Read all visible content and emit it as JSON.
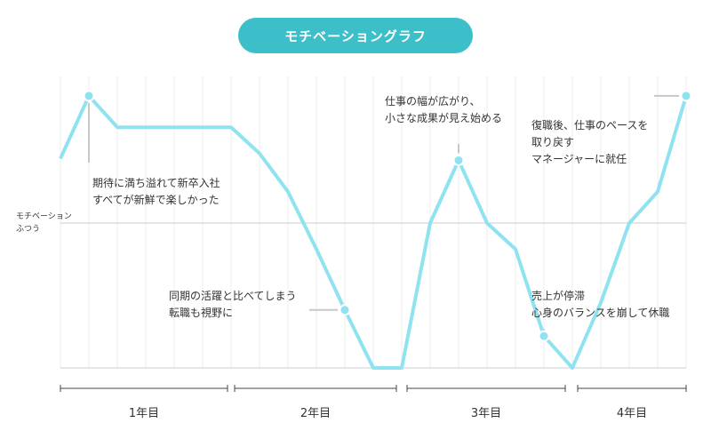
{
  "title": "モチベーショングラフ",
  "chart_data": {
    "type": "line",
    "title": "モチベーショングラフ",
    "ylabel": [
      "モチベーション",
      "ふつう"
    ],
    "ylim": [
      -1,
      1
    ],
    "x": [
      0,
      1,
      2,
      3,
      4,
      5,
      6,
      7,
      8,
      9,
      10,
      11,
      12,
      13,
      14,
      15,
      16,
      17,
      18,
      19,
      20,
      21,
      22
    ],
    "values": [
      0.37,
      0.73,
      0.55,
      0.55,
      0.55,
      0.55,
      0.55,
      0.4,
      0.18,
      -0.18,
      -0.6,
      -1.0,
      -1.0,
      0.0,
      0.36,
      0.0,
      -0.18,
      -0.78,
      -1.0,
      -0.55,
      0.0,
      0.18,
      0.73
    ],
    "markers": [
      1,
      10,
      14,
      17,
      22
    ],
    "periods": [
      "1年目",
      "2年目",
      "3年目",
      "4年目"
    ],
    "annotations": [
      {
        "lines": [
          "期待に満ち溢れて新卒入社",
          "すべてが新鮮で楽しかった"
        ]
      },
      {
        "lines": [
          "同期の活躍と比べてしまう",
          "転職も視野に"
        ]
      },
      {
        "lines": [
          "仕事の幅が広がり、",
          "小さな成果が見え始める"
        ]
      },
      {
        "lines": [
          "売上が停滞",
          "心身のバランスを崩して休職"
        ]
      },
      {
        "lines": [
          "復職後、仕事のペースを",
          "取り戻す",
          "マネージャーに就任"
        ]
      }
    ]
  },
  "colors": {
    "line": "#8fe3f1",
    "title_bg": "#3dbfc9"
  }
}
